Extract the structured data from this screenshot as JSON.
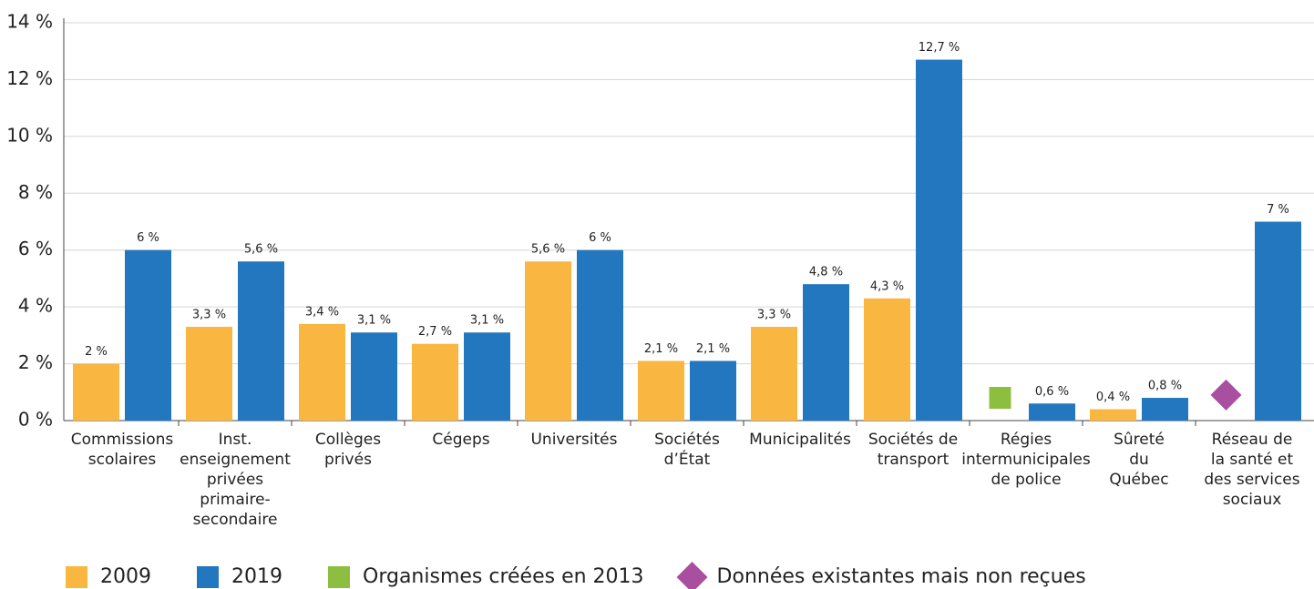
{
  "chart_data": {
    "type": "bar",
    "categories": [
      [
        "Commissions",
        "scolaires"
      ],
      [
        "Inst.",
        "enseignement",
        "privées",
        "primaire-",
        "secondaire"
      ],
      [
        "Collèges",
        "privés"
      ],
      [
        "Cégeps"
      ],
      [
        "Universités"
      ],
      [
        "Sociétés",
        "d’État"
      ],
      [
        "Municipalités"
      ],
      [
        "Sociétés de",
        "transport"
      ],
      [
        "Régies",
        "intermunicipales",
        "de police"
      ],
      [
        "Sûreté",
        "du",
        "Québec"
      ],
      [
        "Réseau de",
        "la santé et",
        "des services",
        "sociaux"
      ]
    ],
    "series": [
      {
        "name": "2009",
        "color": "#f9b641",
        "values": [
          2,
          3.3,
          3.4,
          2.7,
          5.6,
          2.1,
          3.3,
          4.3,
          null,
          0.4,
          null
        ],
        "value_labels": [
          "2 %",
          "3,3 %",
          "3,4 %",
          "2,7 %",
          "5,6 %",
          "2,1 %",
          "3,3 %",
          "4,3 %",
          null,
          "0,4 %",
          null
        ]
      },
      {
        "name": "2019",
        "color": "#2277bf",
        "values": [
          6,
          5.6,
          3.1,
          3.1,
          6,
          2.1,
          4.8,
          12.7,
          0.6,
          0.8,
          7
        ],
        "value_labels": [
          "6 %",
          "5,6 %",
          "3,1 %",
          "3,1 %",
          "6 %",
          "2,1 %",
          "4,8 %",
          "12,7 %",
          "0,6 %",
          "0,8 %",
          "7 %"
        ]
      }
    ],
    "symbols": [
      {
        "name": "Organismes créées en 2013",
        "color": "#8cbf3f",
        "shape": "square",
        "values": [
          null,
          null,
          null,
          null,
          null,
          null,
          null,
          null,
          0.8,
          null,
          null
        ]
      },
      {
        "name": "Données existantes mais non reçues",
        "color": "#a84fa0",
        "shape": "diamond",
        "values": [
          null,
          null,
          null,
          null,
          null,
          null,
          null,
          null,
          null,
          null,
          0.9
        ]
      }
    ],
    "ylim": [
      0,
      14
    ],
    "yticks": [
      {
        "value": 0,
        "label": "0 %"
      },
      {
        "value": 2,
        "label": "2 %"
      },
      {
        "value": 4,
        "label": "4 %"
      },
      {
        "value": 6,
        "label": "6 %"
      },
      {
        "value": 8,
        "label": "8 %"
      },
      {
        "value": 10,
        "label": "10 %"
      },
      {
        "value": 12,
        "label": "12 %"
      },
      {
        "value": 14,
        "label": "14 %"
      }
    ],
    "grid": true
  }
}
